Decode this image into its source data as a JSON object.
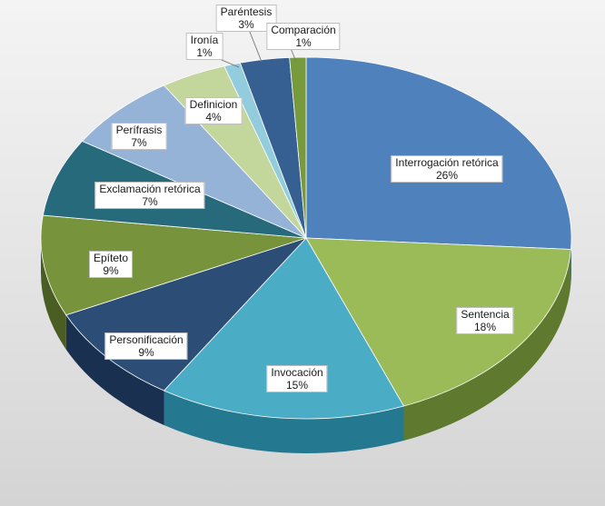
{
  "chart_data": {
    "type": "pie",
    "title": "",
    "slices": [
      {
        "label": "Interrogación retórica",
        "value": 26,
        "value_label": "26%",
        "color": "#4f81bd",
        "side_color": "#2f5585"
      },
      {
        "label": "Sentencia",
        "value": 18,
        "value_label": "18%",
        "color": "#9bbb59",
        "side_color": "#5f7a2e"
      },
      {
        "label": "Invocación",
        "value": 15,
        "value_label": "15%",
        "color": "#4bacc6",
        "side_color": "#24788f"
      },
      {
        "label": "Personificación",
        "value": 9,
        "value_label": "9%",
        "color": "#2c4d75",
        "side_color": "#1a3050"
      },
      {
        "label": "Epíteto",
        "value": 9,
        "value_label": "9%",
        "color": "#77933c",
        "side_color": "#4a5d22"
      },
      {
        "label": "Exclamación retórica",
        "value": 7,
        "value_label": "7%",
        "color": "#276a7c",
        "side_color": "#17424e"
      },
      {
        "label": "Perífrasis",
        "value": 7,
        "value_label": "7%",
        "color": "#95b3d7",
        "side_color": "#6985a8"
      },
      {
        "label": "Definicion",
        "value": 4,
        "value_label": "4%",
        "color": "#c3d69b",
        "side_color": "#8ea065"
      },
      {
        "label": "Ironía",
        "value": 1,
        "value_label": "1%",
        "color": "#93cddd",
        "side_color": "#5f9aaa"
      },
      {
        "label": "Paréntesis",
        "value": 3,
        "value_label": "3%",
        "color": "#366092",
        "side_color": "#213e61"
      },
      {
        "label": "Comparación",
        "value": 1,
        "value_label": "1%",
        "color": "#769a3c",
        "side_color": "#4a6222"
      }
    ],
    "legend": "none",
    "start": "top, clockwise"
  }
}
